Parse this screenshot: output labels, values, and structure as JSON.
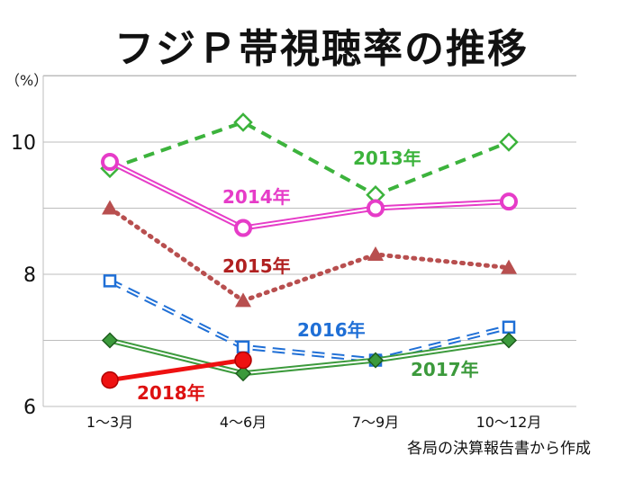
{
  "page": {
    "title": "フジＰ帯視聴率の推移",
    "unit": "（%）",
    "source": "各局の決算報告書から作成"
  },
  "chart_data": {
    "type": "line",
    "title": "フジＰ帯視聴率の推移",
    "categories": [
      "1～3月",
      "4～6月",
      "7～9月",
      "10～12月"
    ],
    "ylim": [
      6,
      11.5
    ],
    "yticks": [
      6,
      8,
      10
    ],
    "grid": true,
    "series": [
      {
        "name": "2013年",
        "values": [
          9.6,
          10.3,
          9.2,
          10.0
        ],
        "color": "#3cb33c",
        "dash": "12,8",
        "marker": "diamond-open",
        "style": "plain"
      },
      {
        "name": "2014年",
        "values": [
          9.7,
          8.7,
          9.0,
          9.1
        ],
        "color": "#e63cc8",
        "dash": "",
        "marker": "circle-open",
        "style": "double"
      },
      {
        "name": "2015年",
        "values": [
          9.0,
          7.6,
          8.3,
          8.1
        ],
        "color": "#b84f4f",
        "dash": "2,7",
        "marker": "triangle",
        "style": "dotted"
      },
      {
        "name": "2016年",
        "values": [
          7.9,
          6.9,
          6.7,
          7.2
        ],
        "color": "#1f6fd6",
        "dash": "14,8",
        "marker": "square-open",
        "style": "double-dash"
      },
      {
        "name": "2017年",
        "values": [
          7.0,
          6.5,
          6.7,
          7.0
        ],
        "color": "#3c9a3c",
        "dash": "",
        "marker": "diamond",
        "style": "double"
      },
      {
        "name": "2018年",
        "values": [
          6.4,
          6.7,
          null,
          null
        ],
        "color": "#ee1111",
        "dash": "",
        "marker": "circle",
        "style": "thick"
      }
    ],
    "series_labels": [
      {
        "series": "2013年",
        "label": "2013年",
        "color": "#3cb33c"
      },
      {
        "series": "2014年",
        "label": "2014年",
        "color": "#e63cc8"
      },
      {
        "series": "2015年",
        "label": "2015年",
        "color": "#b02020"
      },
      {
        "series": "2016年",
        "label": "2016年",
        "color": "#1f6fd6"
      },
      {
        "series": "2017年",
        "label": "2017年",
        "color": "#3c9a3c"
      },
      {
        "series": "2018年",
        "label": "2018年",
        "color": "#dd1111"
      }
    ]
  }
}
